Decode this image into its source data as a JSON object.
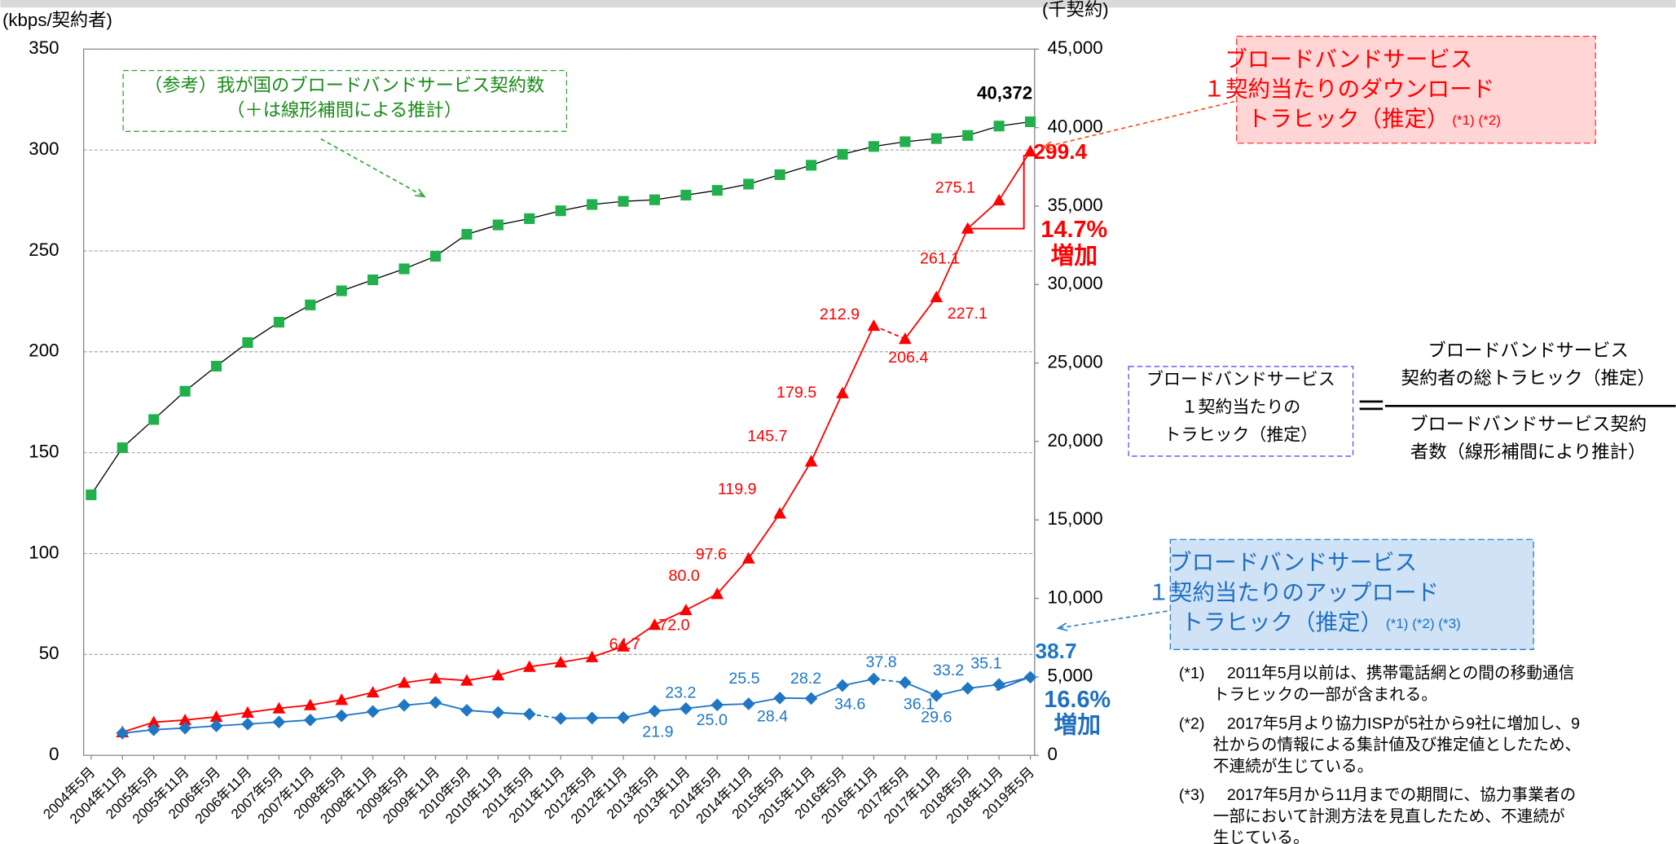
{
  "chart_data": {
    "type": "line",
    "y_label": "(kbps/契約者)",
    "y2_label": "(千契約)",
    "categories": [
      "2004年5月",
      "2004年11月",
      "2005年5月",
      "2005年11月",
      "2006年5月",
      "2006年11月",
      "2007年5月",
      "2007年11月",
      "2008年5月",
      "2008年11月",
      "2009年5月",
      "2009年11月",
      "2010年5月",
      "2010年11月",
      "2011年5月",
      "2011年11月",
      "2012年5月",
      "2012年11月",
      "2013年5月",
      "2013年11月",
      "2014年5月",
      "2014年11月",
      "2015年5月",
      "2015年11月",
      "2016年5月",
      "2016年11月",
      "2017年5月",
      "2017年11月",
      "2018年5月",
      "2018年11月",
      "2019年5月"
    ],
    "ylim": [
      0,
      350
    ],
    "yticks": [
      0,
      50,
      100,
      150,
      200,
      250,
      300,
      350
    ],
    "y2lim": [
      0,
      45000
    ],
    "y2ticks": [
      0,
      {
        "value": 5000,
        "label": "5,000"
      },
      {
        "value": 10000,
        "label": "10,000"
      },
      {
        "value": 15000,
        "label": "15,000"
      },
      {
        "value": 20000,
        "label": "20,000"
      },
      {
        "value": 25000,
        "label": "25,000"
      },
      {
        "value": 30000,
        "label": "30,000"
      },
      {
        "value": 35000,
        "label": "35,000"
      },
      {
        "value": 40000,
        "label": "40,000"
      },
      {
        "value": 45000,
        "label": "45,000"
      }
    ],
    "grid": true,
    "series": [
      {
        "color": "#ff0000",
        "marker": "triangle",
        "values": [
          null,
          11.5,
          16.4,
          17.5,
          19.1,
          21.2,
          23.3,
          24.9,
          27.5,
          31.2,
          36.0,
          38.1,
          37.1,
          39.7,
          43.9,
          46.1,
          48.7,
          54.0,
          64.7,
          72.0,
          80.0,
          97.6,
          119.9,
          145.7,
          179.5,
          212.9,
          206.4,
          227.1,
          261.1,
          275.1,
          299.4
        ],
        "value_labels": [
          null,
          null,
          null,
          null,
          null,
          null,
          null,
          null,
          null,
          null,
          null,
          null,
          null,
          null,
          null,
          null,
          null,
          null,
          "64.7",
          "72.0",
          "80.0",
          "97.6",
          "119.9",
          "145.7",
          "179.5",
          "212.9",
          "206.4",
          "227.1",
          "261.1",
          "275.1",
          "299.4"
        ]
      },
      {
        "color": "#1f77c4",
        "marker": "diamond",
        "values": [
          null,
          11.0,
          12.7,
          13.5,
          14.6,
          15.5,
          16.5,
          17.5,
          19.6,
          21.7,
          24.8,
          26.2,
          22.3,
          21.2,
          20.4,
          18.3,
          18.5,
          18.7,
          21.9,
          23.2,
          25.0,
          25.5,
          28.4,
          28.2,
          34.6,
          37.8,
          36.1,
          29.6,
          33.2,
          35.1,
          38.7
        ],
        "value_labels": [
          null,
          null,
          null,
          null,
          null,
          null,
          null,
          null,
          null,
          null,
          null,
          null,
          null,
          null,
          null,
          null,
          null,
          null,
          "21.9",
          "23.2",
          "25.0",
          "25.5",
          "28.4",
          "28.2",
          "34.6",
          "37.8",
          "36.1",
          "29.6",
          "33.2",
          "35.1",
          "38.7"
        ]
      },
      {
        "color": "#22b04c",
        "marker": "square",
        "axis": "y2",
        "values": [
          16600,
          19600,
          21400,
          23200,
          24800,
          26300,
          27600,
          28700,
          29600,
          30300,
          31000,
          31800,
          33200,
          33800,
          34200,
          34700,
          35100,
          35300,
          35400,
          35700,
          36000,
          36400,
          37000,
          37600,
          38300,
          38800,
          39100,
          39300,
          39500,
          40100,
          40372
        ],
        "value_labels": [
          null,
          null,
          null,
          null,
          null,
          null,
          null,
          null,
          null,
          null,
          null,
          null,
          null,
          null,
          null,
          null,
          null,
          null,
          null,
          null,
          null,
          null,
          null,
          null,
          null,
          null,
          null,
          null,
          null,
          null,
          "40,372"
        ]
      }
    ],
    "annotations": {
      "green_box": {
        "lines": [
          "（参考）我が国のブロードバンドサービス契約数",
          "（＋は線形補間による推計）"
        ]
      },
      "download_box": {
        "lines": [
          "ブロードバンドサービス",
          "１契約当たりのダウンロード",
          "トラヒック（推定）"
        ],
        "note": "(*1) (*2)"
      },
      "upload_box": {
        "lines": [
          "ブロードバンドサービス",
          "１契約当たりのアップロード",
          "トラヒック（推定）"
        ],
        "note": "(*1) (*2) (*3)"
      },
      "formula": {
        "lhs": [
          "ブロードバンドサービス",
          "１契約当たりの",
          "トラヒック（推定）"
        ],
        "equals": "＝",
        "numerator": [
          "ブロードバンドサービス",
          "契約者の総トラヒック（推定）"
        ],
        "denominator": [
          "ブロードバンドサービス契約",
          "者数（線形補間により推計）"
        ]
      },
      "download_increase": [
        "14.7%",
        "増加"
      ],
      "upload_increase": [
        "16.6%",
        "増加"
      ],
      "footnotes": [
        {
          "mark": "(*1)",
          "lines": [
            "2011年5月以前は、携帯電話網との間の移動通信",
            "トラヒックの一部が含まれる。"
          ]
        },
        {
          "mark": "(*2)",
          "lines": [
            "2017年5月より協力ISPが5社から9社に増加し、9",
            "社からの情報による集計値及び推定値としたため、",
            "不連続が生じている。"
          ]
        },
        {
          "mark": "(*3)",
          "lines": [
            "2017年5月から11月までの期間に、協力事業者の",
            "一部において計測方法を見直したため、不連続が",
            "生じている。"
          ]
        }
      ]
    }
  }
}
